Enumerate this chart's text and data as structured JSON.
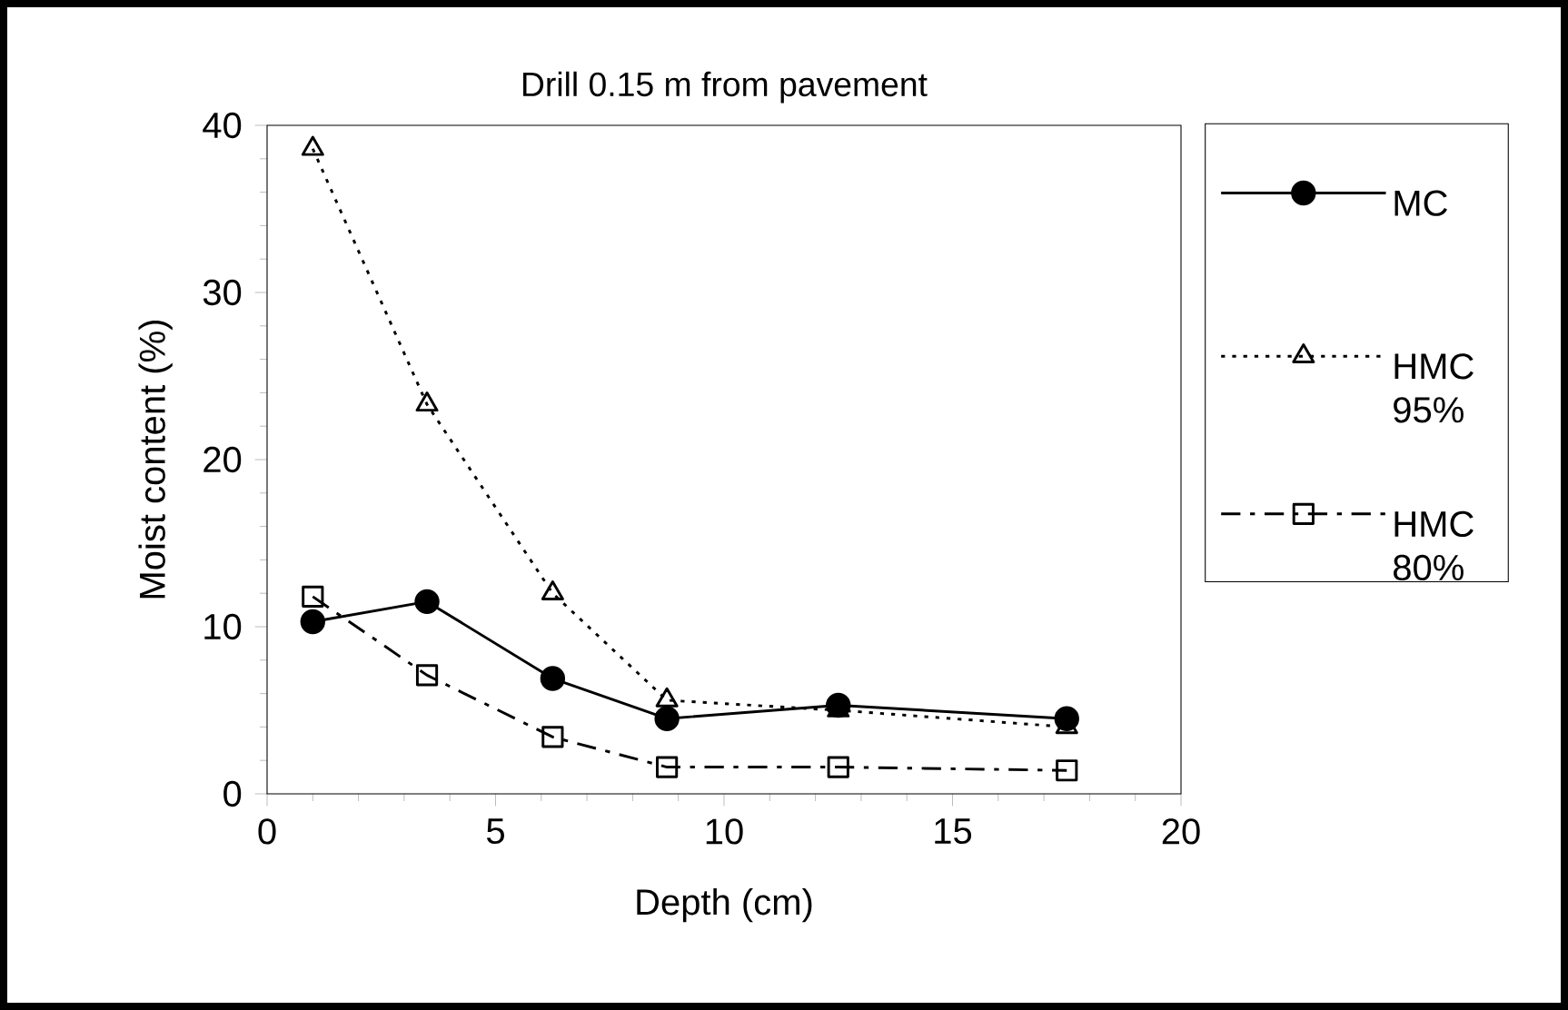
{
  "chart_data": {
    "type": "line",
    "title": "Drill 0.15 m from pavement",
    "xlabel": "Depth (cm)",
    "ylabel": "Moist content (%)",
    "x": [
      1,
      3.5,
      6.25,
      8.75,
      12.5,
      17.5
    ],
    "series": [
      {
        "name": "MC",
        "color": "#000000",
        "marker": "circle",
        "line_style": "solid",
        "values": [
          10.3,
          11.5,
          6.9,
          4.5,
          5.3,
          4.5
        ]
      },
      {
        "name": "HMC 95%",
        "color": "#000000",
        "marker": "triangle",
        "line_style": "dotted",
        "values": [
          38.6,
          23.3,
          12.0,
          5.6,
          5.0,
          4.0
        ]
      },
      {
        "name": "HMC 80%",
        "color": "#000000",
        "marker": "square",
        "line_style": "dashdot",
        "values": [
          11.8,
          7.1,
          3.4,
          1.6,
          1.6,
          1.4
        ]
      }
    ],
    "xlim": [
      0,
      20
    ],
    "xticks": [
      0,
      5,
      10,
      15,
      20
    ],
    "ylim": [
      0,
      40
    ],
    "yticks": [
      0,
      10,
      20,
      30,
      40
    ],
    "grid": false,
    "legend": "right"
  }
}
